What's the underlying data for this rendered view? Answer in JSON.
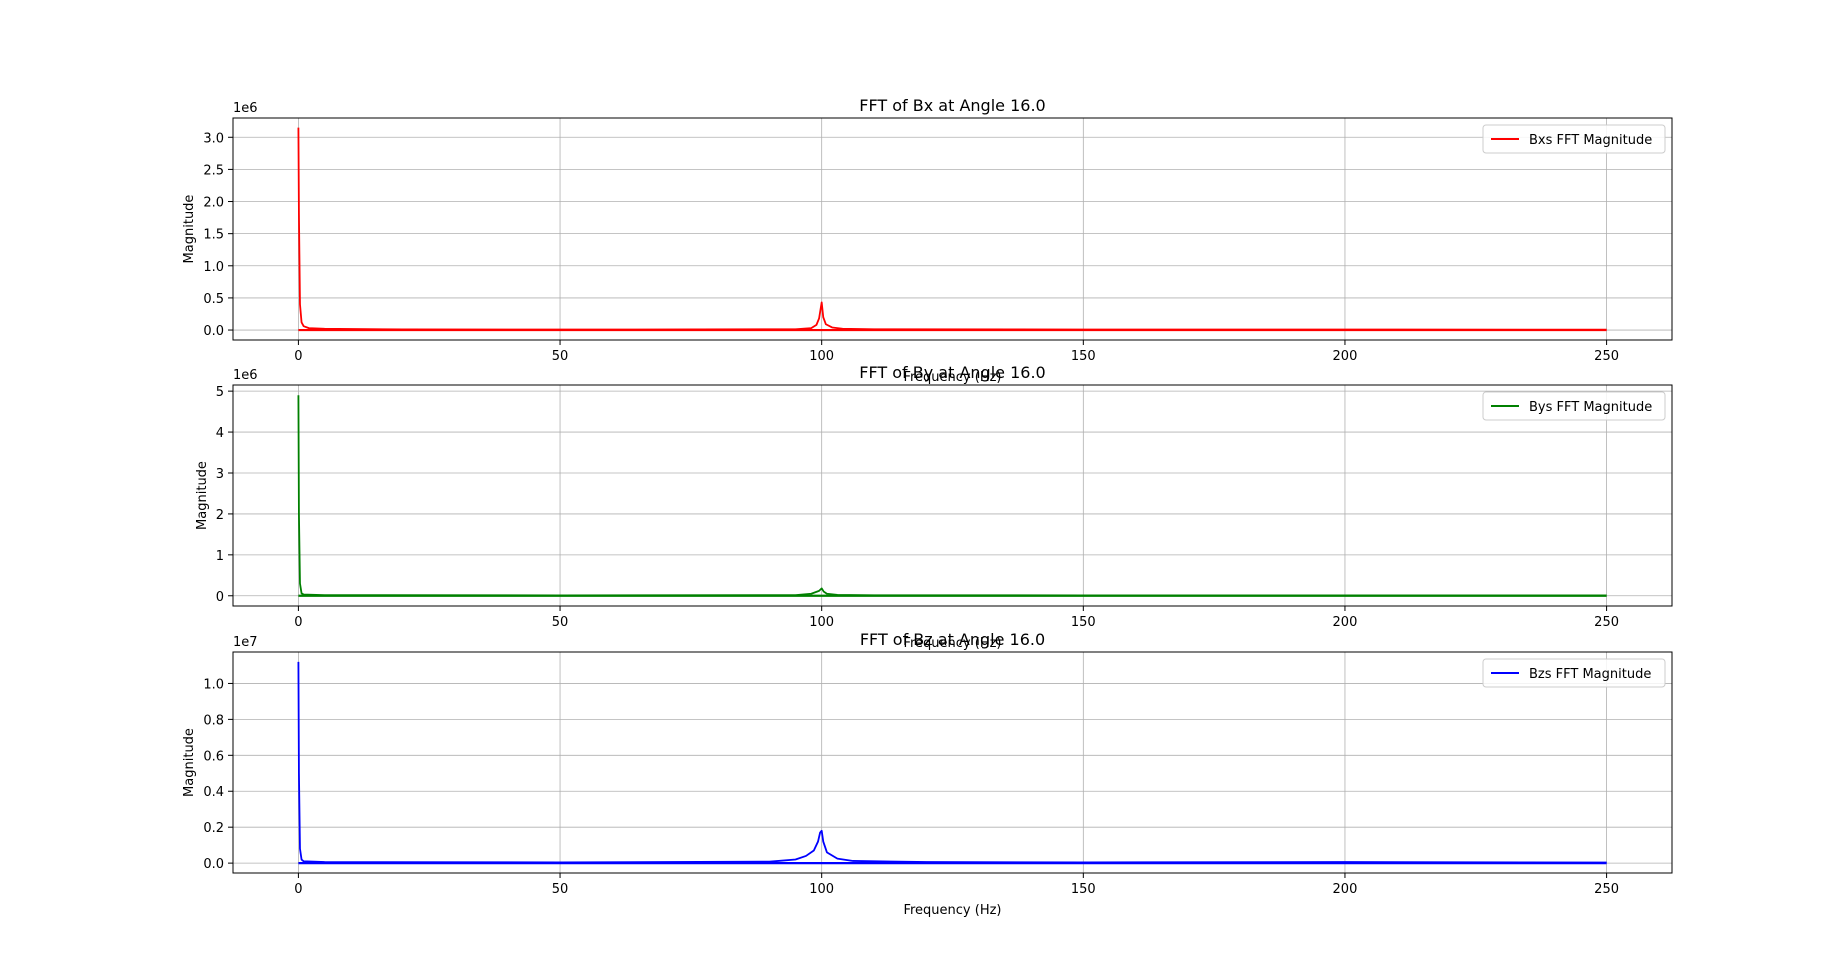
{
  "chart_data": [
    {
      "type": "line",
      "title": "FFT of Bx at Angle 16.0",
      "xlabel": "Frequency (Hz)",
      "ylabel": "Magnitude",
      "offset_text": "1e6",
      "xlim": [
        -12.5,
        262.5
      ],
      "ylim": [
        -0.155,
        3.3
      ],
      "xticks": [
        0,
        50,
        100,
        150,
        200,
        250
      ],
      "xtick_labels": [
        "0",
        "50",
        "100",
        "150",
        "200",
        "250"
      ],
      "yticks": [
        0.0,
        0.5,
        1.0,
        1.5,
        2.0,
        2.5,
        3.0
      ],
      "ytick_labels": [
        "0.0",
        "0.5",
        "1.0",
        "1.5",
        "2.0",
        "2.5",
        "3.0"
      ],
      "grid": true,
      "legend": "upper-right",
      "series": [
        {
          "name": "Bxs FFT Magnitude",
          "color": "#ff0000",
          "points": [
            [
              0,
              3.15
            ],
            [
              0.1,
              1.8
            ],
            [
              0.3,
              0.4
            ],
            [
              0.6,
              0.12
            ],
            [
              1,
              0.06
            ],
            [
              2,
              0.03
            ],
            [
              5,
              0.02
            ],
            [
              20,
              0.01
            ],
            [
              60,
              0.008
            ],
            [
              95,
              0.012
            ],
            [
              98,
              0.03
            ],
            [
              99,
              0.08
            ],
            [
              99.5,
              0.18
            ],
            [
              100,
              0.43
            ],
            [
              100.3,
              0.2
            ],
            [
              100.8,
              0.09
            ],
            [
              102,
              0.04
            ],
            [
              104,
              0.02
            ],
            [
              110,
              0.012
            ],
            [
              150,
              0.008
            ],
            [
              200,
              0.008
            ],
            [
              250,
              0.006
            ]
          ]
        }
      ]
    },
    {
      "type": "line",
      "title": "FFT of By at Angle 16.0",
      "xlabel": "Frequency (Hz)",
      "ylabel": "Magnitude",
      "offset_text": "1e6",
      "xlim": [
        -12.5,
        262.5
      ],
      "ylim": [
        -0.25,
        5.15
      ],
      "xticks": [
        0,
        50,
        100,
        150,
        200,
        250
      ],
      "xtick_labels": [
        "0",
        "50",
        "100",
        "150",
        "200",
        "250"
      ],
      "yticks": [
        0,
        1,
        2,
        3,
        4,
        5
      ],
      "ytick_labels": [
        "0",
        "1",
        "2",
        "3",
        "4",
        "5"
      ],
      "grid": true,
      "legend": "upper-right",
      "series": [
        {
          "name": "Bys FFT Magnitude",
          "color": "#008000",
          "points": [
            [
              0,
              4.9
            ],
            [
              0.1,
              2.0
            ],
            [
              0.3,
              0.3
            ],
            [
              0.6,
              0.06
            ],
            [
              1,
              0.03
            ],
            [
              5,
              0.015
            ],
            [
              50,
              0.01
            ],
            [
              95,
              0.015
            ],
            [
              98,
              0.05
            ],
            [
              99.5,
              0.12
            ],
            [
              100,
              0.18
            ],
            [
              100.4,
              0.1
            ],
            [
              101,
              0.05
            ],
            [
              103,
              0.02
            ],
            [
              110,
              0.012
            ],
            [
              150,
              0.01
            ],
            [
              250,
              0.008
            ]
          ]
        }
      ]
    },
    {
      "type": "line",
      "title": "FFT of Bz at Angle 16.0",
      "xlabel": "Frequency (Hz)",
      "ylabel": "Magnitude",
      "offset_text": "1e7",
      "xlim": [
        -12.5,
        262.5
      ],
      "ylim": [
        -0.055,
        1.175
      ],
      "xticks": [
        0,
        50,
        100,
        150,
        200,
        250
      ],
      "xtick_labels": [
        "0",
        "50",
        "100",
        "150",
        "200",
        "250"
      ],
      "yticks": [
        0.0,
        0.2,
        0.4,
        0.6,
        0.8,
        1.0
      ],
      "ytick_labels": [
        "0.0",
        "0.2",
        "0.4",
        "0.6",
        "0.8",
        "1.0"
      ],
      "grid": true,
      "legend": "upper-right",
      "series": [
        {
          "name": "Bzs FFT Magnitude",
          "color": "#0000ff",
          "points": [
            [
              0,
              1.12
            ],
            [
              0.1,
              0.5
            ],
            [
              0.3,
              0.08
            ],
            [
              0.6,
              0.02
            ],
            [
              1,
              0.01
            ],
            [
              5,
              0.006
            ],
            [
              50,
              0.004
            ],
            [
              90,
              0.008
            ],
            [
              95,
              0.02
            ],
            [
              97,
              0.04
            ],
            [
              98.5,
              0.07
            ],
            [
              99.3,
              0.12
            ],
            [
              99.7,
              0.17
            ],
            [
              100,
              0.18
            ],
            [
              100.3,
              0.12
            ],
            [
              101,
              0.06
            ],
            [
              103,
              0.025
            ],
            [
              106,
              0.012
            ],
            [
              120,
              0.006
            ],
            [
              150,
              0.004
            ],
            [
              200,
              0.006
            ],
            [
              250,
              0.003
            ]
          ]
        }
      ]
    }
  ]
}
